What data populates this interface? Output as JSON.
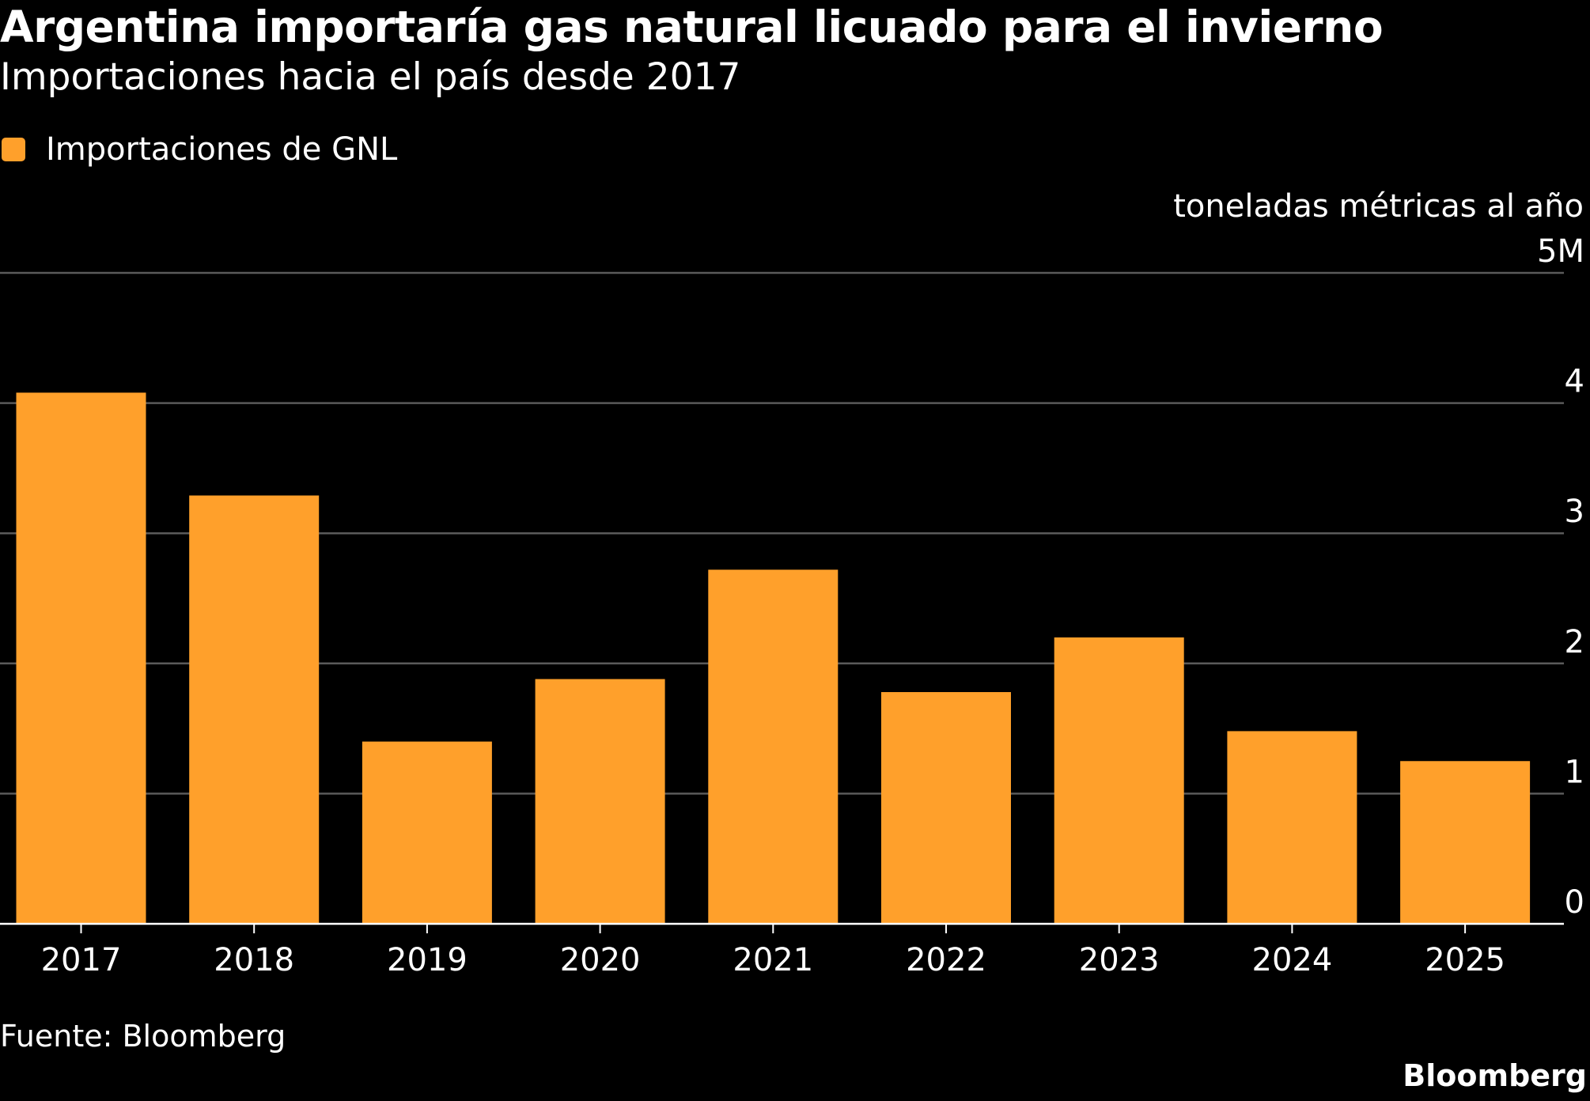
{
  "chart_data": {
    "type": "bar",
    "title": "Argentina importaría gas natural licuado para el invierno",
    "subtitle": "Importaciones hacia el país desde 2017",
    "ylabel": "toneladas métricas al año",
    "categories": [
      "2017",
      "2018",
      "2019",
      "2020",
      "2021",
      "2022",
      "2023",
      "2024",
      "2025"
    ],
    "series": [
      {
        "name": "Importaciones de GNL",
        "values": [
          4.08,
          3.29,
          1.4,
          1.88,
          2.72,
          1.78,
          2.2,
          1.48,
          1.25
        ],
        "color": "#FFA02B"
      }
    ],
    "ylim": [
      0,
      5
    ],
    "yticks": [
      0,
      1,
      2,
      3,
      4,
      5
    ],
    "ytick_labels": [
      "0",
      "1",
      "2",
      "3",
      "4",
      "5M"
    ],
    "grid": true,
    "legend": "top-left",
    "source": "Fuente: Bloomberg",
    "brand": "Bloomberg"
  }
}
